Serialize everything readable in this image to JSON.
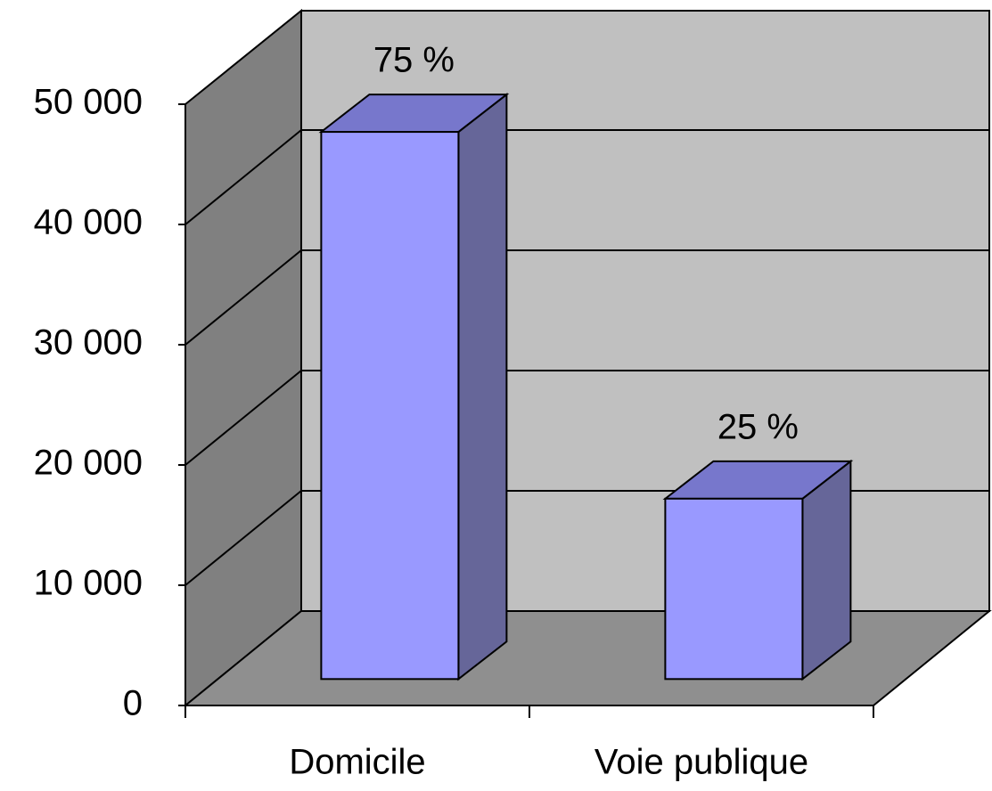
{
  "chart_data": {
    "type": "bar3d",
    "categories": [
      "Domicile",
      "Voie publique"
    ],
    "values": [
      45500,
      15000
    ],
    "value_labels": [
      "75 %",
      "25 %"
    ],
    "color": "#9999ff",
    "ylim": [
      0,
      50000
    ],
    "yticks": [
      0,
      {
        "value": 10000,
        "label": "10 000"
      },
      {
        "value": 20000,
        "label": "20 000"
      },
      {
        "value": 30000,
        "label": "30 000"
      },
      {
        "value": 40000,
        "label": "40 000"
      },
      {
        "value": 50000,
        "label": "50 000"
      }
    ],
    "grid": true
  }
}
